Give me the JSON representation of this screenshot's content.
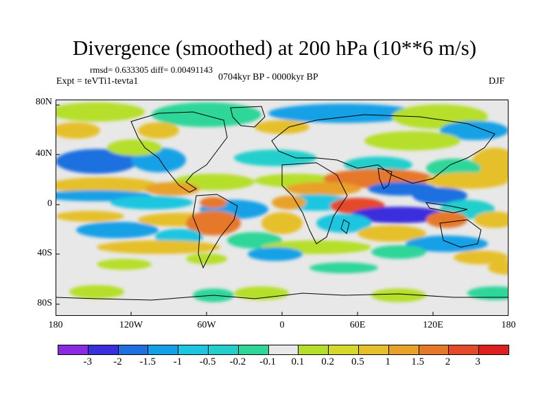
{
  "title": "Divergence (smoothed) at 200 hPa (10**6 m/s)",
  "stats": "rmsd= 0.633305 diff= 0.00491143",
  "experiment": "Expt = teVTi1-tevta1",
  "period": "0704kyr BP - 0000kyr BP",
  "season": "DJF",
  "map": {
    "projection": "cylindrical equidistant",
    "lat_ticks": [
      "80N",
      "40N",
      "0",
      "40S",
      "80S"
    ],
    "lon_ticks": [
      "180",
      "120W",
      "60W",
      "0",
      "60E",
      "120E",
      "180"
    ]
  },
  "colorbar": {
    "colors": [
      "#8a2be2",
      "#3a2fdc",
      "#1f6fe0",
      "#14a0e6",
      "#1cc6e0",
      "#22cfcc",
      "#2fd69a",
      "#e8e8e8",
      "#b5df2a",
      "#d6d82a",
      "#e6c02a",
      "#e8a22a",
      "#e6782a",
      "#e44a2a",
      "#de1f1f"
    ],
    "labels": [
      "-3",
      "-2",
      "-1.5",
      "-1",
      "-0.5",
      "-0.2",
      "-0.1",
      "0.1",
      "0.2",
      "0.5",
      "1",
      "1.5",
      "2",
      "3"
    ]
  },
  "colors": {
    "background": "#e8e8e8",
    "coastline": "#000000"
  }
}
